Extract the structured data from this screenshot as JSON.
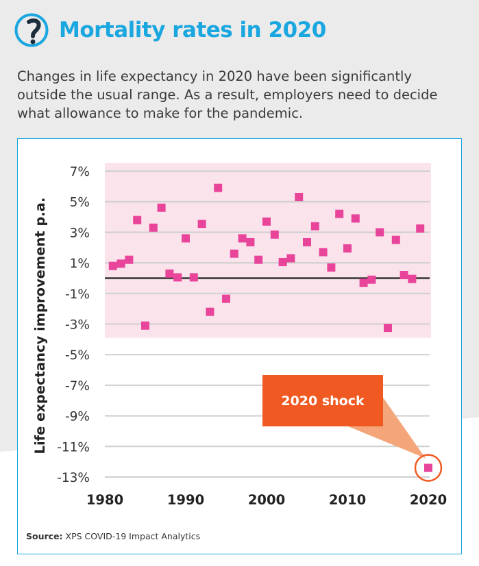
{
  "page": {
    "title": "Mortality rates in 2020",
    "subtitle": "Changes in life expectancy in 2020 have been significantly outside the usual range. As a result, employers need to decide what allowance to make for the pandemic.",
    "source_label": "Source:",
    "source_text": "XPS COVID-19 Impact Analytics",
    "colors": {
      "title": "#1aa7e0",
      "marker": "#e8459a",
      "band": "#fbe3ec",
      "callout": "#f05a22",
      "callout_pointer": "#f4a67a"
    },
    "icon": "question-mark-icon"
  },
  "chart_data": {
    "type": "scatter",
    "ylabel": "Life expectancy improvement p.a.",
    "xlabel": "",
    "xlim": [
      1980,
      2020
    ],
    "ylim": [
      -13,
      7
    ],
    "x_ticks": [
      "1980",
      "1990",
      "2000",
      "2010",
      "2020"
    ],
    "y_ticks": [
      "7%",
      "5%",
      "3%",
      "1%",
      "-1%",
      "-3%",
      "-5%",
      "-7%",
      "-9%",
      "-11%",
      "-13%"
    ],
    "usual_range": [
      -3.9,
      7
    ],
    "zero_line": 0,
    "annotation": {
      "text": "2020 shock",
      "x": 2020,
      "y": -12.4
    },
    "points": [
      {
        "x": 1981,
        "y": 0.8
      },
      {
        "x": 1982,
        "y": 0.95
      },
      {
        "x": 1983,
        "y": 1.2
      },
      {
        "x": 1984,
        "y": 3.8
      },
      {
        "x": 1985,
        "y": -3.1
      },
      {
        "x": 1986,
        "y": 3.3
      },
      {
        "x": 1987,
        "y": 4.6
      },
      {
        "x": 1988,
        "y": 0.3
      },
      {
        "x": 1989,
        "y": 0.05
      },
      {
        "x": 1990,
        "y": 2.6
      },
      {
        "x": 1991,
        "y": 0.05
      },
      {
        "x": 1992,
        "y": 3.55
      },
      {
        "x": 1993,
        "y": -2.2
      },
      {
        "x": 1994,
        "y": 5.9
      },
      {
        "x": 1995,
        "y": -1.35
      },
      {
        "x": 1996,
        "y": 1.6
      },
      {
        "x": 1997,
        "y": 2.6
      },
      {
        "x": 1998,
        "y": 2.35
      },
      {
        "x": 1999,
        "y": 1.2
      },
      {
        "x": 2000,
        "y": 3.7
      },
      {
        "x": 2001,
        "y": 2.85
      },
      {
        "x": 2002,
        "y": 1.05
      },
      {
        "x": 2003,
        "y": 1.3
      },
      {
        "x": 2004,
        "y": 5.3
      },
      {
        "x": 2005,
        "y": 2.35
      },
      {
        "x": 2006,
        "y": 3.4
      },
      {
        "x": 2007,
        "y": 1.7
      },
      {
        "x": 2008,
        "y": 0.7
      },
      {
        "x": 2009,
        "y": 4.2
      },
      {
        "x": 2010,
        "y": 1.95
      },
      {
        "x": 2011,
        "y": 3.9
      },
      {
        "x": 2012,
        "y": -0.3
      },
      {
        "x": 2013,
        "y": -0.1
      },
      {
        "x": 2014,
        "y": 3.0
      },
      {
        "x": 2015,
        "y": -3.25
      },
      {
        "x": 2016,
        "y": 2.5
      },
      {
        "x": 2017,
        "y": 0.2
      },
      {
        "x": 2018,
        "y": -0.05
      },
      {
        "x": 2019,
        "y": 3.25
      },
      {
        "x": 2020,
        "y": -12.4
      }
    ]
  }
}
